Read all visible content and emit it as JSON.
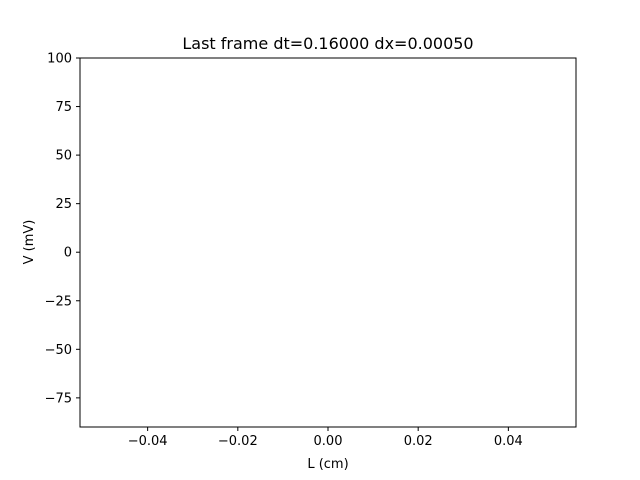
{
  "chart_data": {
    "type": "line",
    "title": "Last frame dt=0.16000 dx=0.00050",
    "xlabel": "L (cm)",
    "ylabel": "V (mV)",
    "xlim": [
      -0.055,
      0.055
    ],
    "ylim": [
      -90,
      100
    ],
    "xticks": [
      -0.04,
      -0.02,
      0.0,
      0.02,
      0.04
    ],
    "xtick_labels": [
      "−0.04",
      "−0.02",
      "0.00",
      "0.02",
      "0.04"
    ],
    "yticks": [
      100,
      75,
      50,
      25,
      0,
      -25,
      -50,
      -75
    ],
    "ytick_labels": [
      "100",
      "75",
      "50",
      "25",
      "0",
      "−25",
      "−50",
      "−75"
    ],
    "grid": false,
    "series": []
  }
}
